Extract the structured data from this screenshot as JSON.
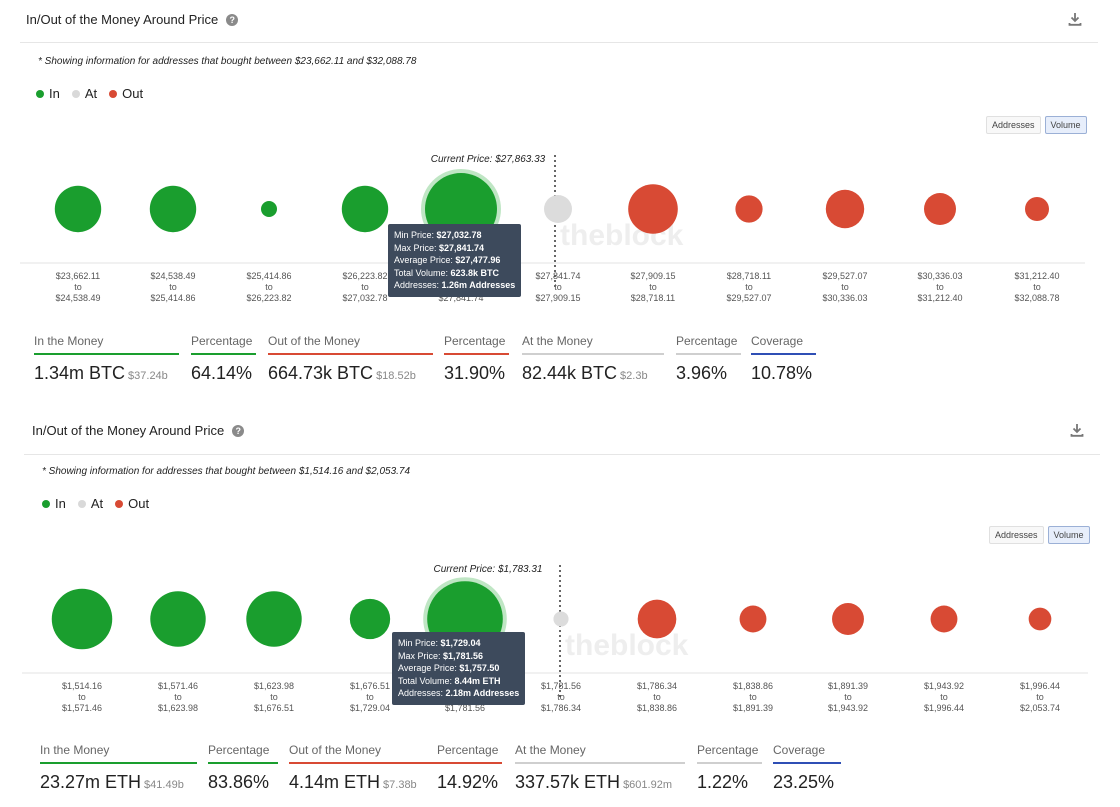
{
  "panels": [
    {
      "title": "In/Out of the Money Around Price",
      "note": "* Showing information for addresses that bought between $23,662.11 and $32,088.78",
      "legend": [
        {
          "label": "In",
          "color": "#1a9e2e"
        },
        {
          "label": "At",
          "color": "#d9d9d9"
        },
        {
          "label": "Out",
          "color": "#d84a34"
        }
      ],
      "toggle": {
        "addresses": "Addresses",
        "volume": "Volume"
      },
      "watermark": "theblock",
      "chart_data": {
        "type": "scatter",
        "current_price_label": "Current Price: $27,863.33",
        "current_price_index": 5,
        "buckets": [
          {
            "from": "$23,662.11",
            "to": "$24,538.49",
            "status": "in",
            "size": 0.58
          },
          {
            "from": "$24,538.49",
            "to": "$25,414.86",
            "status": "in",
            "size": 0.58
          },
          {
            "from": "$25,414.86",
            "to": "$26,223.82",
            "status": "in",
            "size": 0.2
          },
          {
            "from": "$26,223.82",
            "to": "$27,032.78",
            "status": "in",
            "size": 0.58
          },
          {
            "from": "$27,032.78",
            "to": "$27,841.74",
            "status": "in",
            "size": 0.9
          },
          {
            "from": "$27,841.74",
            "to": "$27,909.15",
            "status": "at",
            "size": 0.35
          },
          {
            "from": "$27,909.15",
            "to": "$28,718.11",
            "status": "out",
            "size": 0.62
          },
          {
            "from": "$28,718.11",
            "to": "$29,527.07",
            "status": "out",
            "size": 0.34
          },
          {
            "from": "$29,527.07",
            "to": "$30,336.03",
            "status": "out",
            "size": 0.48
          },
          {
            "from": "$30,336.03",
            "to": "$31,212.40",
            "status": "out",
            "size": 0.4
          },
          {
            "from": "$31,212.40",
            "to": "$32,088.78",
            "status": "out",
            "size": 0.3
          }
        ],
        "to_word": "to",
        "tooltip": {
          "index": 4,
          "lines": [
            {
              "k": "Min Price: ",
              "v": "$27,032.78"
            },
            {
              "k": "Max Price: ",
              "v": "$27,841.74"
            },
            {
              "k": "Average Price: ",
              "v": "$27,477.96"
            },
            {
              "k": "Total Volume: ",
              "v": "623.8k BTC"
            },
            {
              "k": "Addresses: ",
              "v": "1.26m Addresses"
            }
          ]
        }
      },
      "stats": [
        {
          "label": "In the Money",
          "value": "1.34m BTC",
          "sub": "$37.24b",
          "color": "#1a9e2e"
        },
        {
          "label": "Percentage",
          "value": "64.14%",
          "sub": "",
          "color": "#1a9e2e"
        },
        {
          "label": "Out of the Money",
          "value": "664.73k BTC",
          "sub": "$18.52b",
          "color": "#d84a34"
        },
        {
          "label": "Percentage",
          "value": "31.90%",
          "sub": "",
          "color": "#d84a34"
        },
        {
          "label": "At the Money",
          "value": "82.44k BTC",
          "sub": "$2.3b",
          "color": "#cfcfcf"
        },
        {
          "label": "Percentage",
          "value": "3.96%",
          "sub": "",
          "color": "#cfcfcf"
        },
        {
          "label": "Coverage",
          "value": "10.78%",
          "sub": "",
          "color": "#2f4fb5"
        }
      ]
    },
    {
      "title": "In/Out of the Money Around Price",
      "note": "* Showing information for addresses that bought between $1,514.16 and $2,053.74",
      "legend": [
        {
          "label": "In",
          "color": "#1a9e2e"
        },
        {
          "label": "At",
          "color": "#d9d9d9"
        },
        {
          "label": "Out",
          "color": "#d84a34"
        }
      ],
      "toggle": {
        "addresses": "Addresses",
        "volume": "Volume"
      },
      "watermark": "theblock",
      "chart_data": {
        "type": "scatter",
        "current_price_label": "Current Price: $1,783.31",
        "current_price_index": 5,
        "buckets": [
          {
            "from": "$1,514.16",
            "to": "$1,571.46",
            "status": "in",
            "size": 0.72
          },
          {
            "from": "$1,571.46",
            "to": "$1,623.98",
            "status": "in",
            "size": 0.66
          },
          {
            "from": "$1,623.98",
            "to": "$1,676.51",
            "status": "in",
            "size": 0.66
          },
          {
            "from": "$1,676.51",
            "to": "$1,729.04",
            "status": "in",
            "size": 0.48
          },
          {
            "from": "$1,729.04",
            "to": "$1,781.56",
            "status": "in",
            "size": 0.9
          },
          {
            "from": "$1,781.56",
            "to": "$1,786.34",
            "status": "at",
            "size": 0.18
          },
          {
            "from": "$1,786.34",
            "to": "$1,838.86",
            "status": "out",
            "size": 0.46
          },
          {
            "from": "$1,838.86",
            "to": "$1,891.39",
            "status": "out",
            "size": 0.32
          },
          {
            "from": "$1,891.39",
            "to": "$1,943.92",
            "status": "out",
            "size": 0.38
          },
          {
            "from": "$1,943.92",
            "to": "$1,996.44",
            "status": "out",
            "size": 0.32
          },
          {
            "from": "$1,996.44",
            "to": "$2,053.74",
            "status": "out",
            "size": 0.27
          }
        ],
        "to_word": "to",
        "tooltip": {
          "index": 4,
          "lines": [
            {
              "k": "Min Price: ",
              "v": "$1,729.04"
            },
            {
              "k": "Max Price: ",
              "v": "$1,781.56"
            },
            {
              "k": "Average Price: ",
              "v": "$1,757.50"
            },
            {
              "k": "Total Volume: ",
              "v": "8.44m ETH"
            },
            {
              "k": "Addresses: ",
              "v": "2.18m Addresses"
            }
          ]
        }
      },
      "stats": [
        {
          "label": "In the Money",
          "value": "23.27m ETH",
          "sub": "$41.49b",
          "color": "#1a9e2e"
        },
        {
          "label": "Percentage",
          "value": "83.86%",
          "sub": "",
          "color": "#1a9e2e"
        },
        {
          "label": "Out of the Money",
          "value": "4.14m ETH",
          "sub": "$7.38b",
          "color": "#d84a34"
        },
        {
          "label": "Percentage",
          "value": "14.92%",
          "sub": "",
          "color": "#d84a34"
        },
        {
          "label": "At the Money",
          "value": "337.57k ETH",
          "sub": "$601.92m",
          "color": "#cfcfcf"
        },
        {
          "label": "Percentage",
          "value": "1.22%",
          "sub": "",
          "color": "#cfcfcf"
        },
        {
          "label": "Coverage",
          "value": "23.25%",
          "sub": "",
          "color": "#2f4fb5"
        }
      ]
    }
  ]
}
